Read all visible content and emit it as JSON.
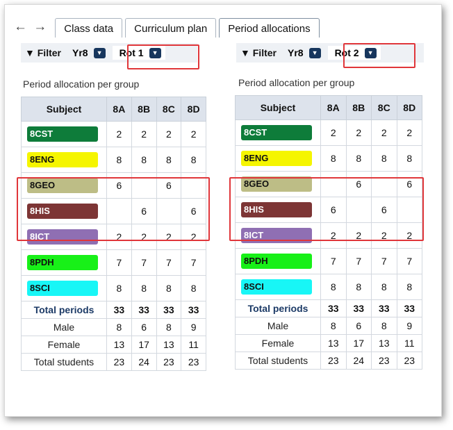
{
  "nav": {
    "back": "←",
    "forward": "→"
  },
  "tabs": [
    {
      "label": "Class data"
    },
    {
      "label": "Curriculum plan"
    },
    {
      "label": "Period allocations",
      "active": true
    }
  ],
  "left": {
    "filter_label": "Filter",
    "year": "Yr8",
    "rotation": "Rot 1",
    "caption": "Period allocation per group",
    "columns": [
      "Subject",
      "8A",
      "8B",
      "8C",
      "8D"
    ],
    "rows": [
      {
        "subject": "8CST",
        "color": "#0e7c3a",
        "text": "#ffffff",
        "vals": [
          "2",
          "2",
          "2",
          "2"
        ]
      },
      {
        "subject": "8ENG",
        "color": "#f5f500",
        "text": "#111111",
        "vals": [
          "8",
          "8",
          "8",
          "8"
        ]
      },
      {
        "subject": "8GEO",
        "color": "#bdbd86",
        "text": "#111111",
        "vals": [
          "6",
          "",
          "6",
          ""
        ]
      },
      {
        "subject": "8HIS",
        "color": "#7d3535",
        "text": "#ffffff",
        "vals": [
          "",
          "6",
          "",
          "6"
        ]
      },
      {
        "subject": "8ICT",
        "color": "#8f6fb3",
        "text": "#ffffff",
        "vals": [
          "2",
          "2",
          "2",
          "2"
        ]
      },
      {
        "subject": "8PDH",
        "color": "#18f018",
        "text": "#111111",
        "vals": [
          "7",
          "7",
          "7",
          "7"
        ]
      },
      {
        "subject": "8SCI",
        "color": "#18f6f6",
        "text": "#111111",
        "vals": [
          "8",
          "8",
          "8",
          "8"
        ]
      }
    ],
    "total_periods": {
      "label": "Total periods",
      "vals": [
        "33",
        "33",
        "33",
        "33"
      ]
    },
    "male": {
      "label": "Male",
      "vals": [
        "8",
        "6",
        "8",
        "9"
      ]
    },
    "female": {
      "label": "Female",
      "vals": [
        "13",
        "17",
        "13",
        "11"
      ]
    },
    "total_students": {
      "label": "Total students",
      "vals": [
        "23",
        "24",
        "23",
        "23"
      ]
    }
  },
  "right": {
    "filter_label": "Filter",
    "year": "Yr8",
    "rotation": "Rot 2",
    "caption": "Period allocation per group",
    "columns": [
      "Subject",
      "8A",
      "8B",
      "8C",
      "8D"
    ],
    "rows": [
      {
        "subject": "8CST",
        "color": "#0e7c3a",
        "text": "#ffffff",
        "vals": [
          "2",
          "2",
          "2",
          "2"
        ]
      },
      {
        "subject": "8ENG",
        "color": "#f5f500",
        "text": "#111111",
        "vals": [
          "8",
          "8",
          "8",
          "8"
        ]
      },
      {
        "subject": "8GEO",
        "color": "#bdbd86",
        "text": "#111111",
        "vals": [
          "",
          "6",
          "",
          "6"
        ]
      },
      {
        "subject": "8HIS",
        "color": "#7d3535",
        "text": "#ffffff",
        "vals": [
          "6",
          "",
          "6",
          ""
        ]
      },
      {
        "subject": "8ICT",
        "color": "#8f6fb3",
        "text": "#ffffff",
        "vals": [
          "2",
          "2",
          "2",
          "2"
        ]
      },
      {
        "subject": "8PDH",
        "color": "#18f018",
        "text": "#111111",
        "vals": [
          "7",
          "7",
          "7",
          "7"
        ]
      },
      {
        "subject": "8SCI",
        "color": "#18f6f6",
        "text": "#111111",
        "vals": [
          "8",
          "8",
          "8",
          "8"
        ]
      }
    ],
    "total_periods": {
      "label": "Total periods",
      "vals": [
        "33",
        "33",
        "33",
        "33"
      ]
    },
    "male": {
      "label": "Male",
      "vals": [
        "8",
        "6",
        "8",
        "9"
      ]
    },
    "female": {
      "label": "Female",
      "vals": [
        "13",
        "17",
        "13",
        "11"
      ]
    },
    "total_students": {
      "label": "Total students",
      "vals": [
        "23",
        "24",
        "23",
        "23"
      ]
    }
  },
  "highlight_color": "#e0363a"
}
